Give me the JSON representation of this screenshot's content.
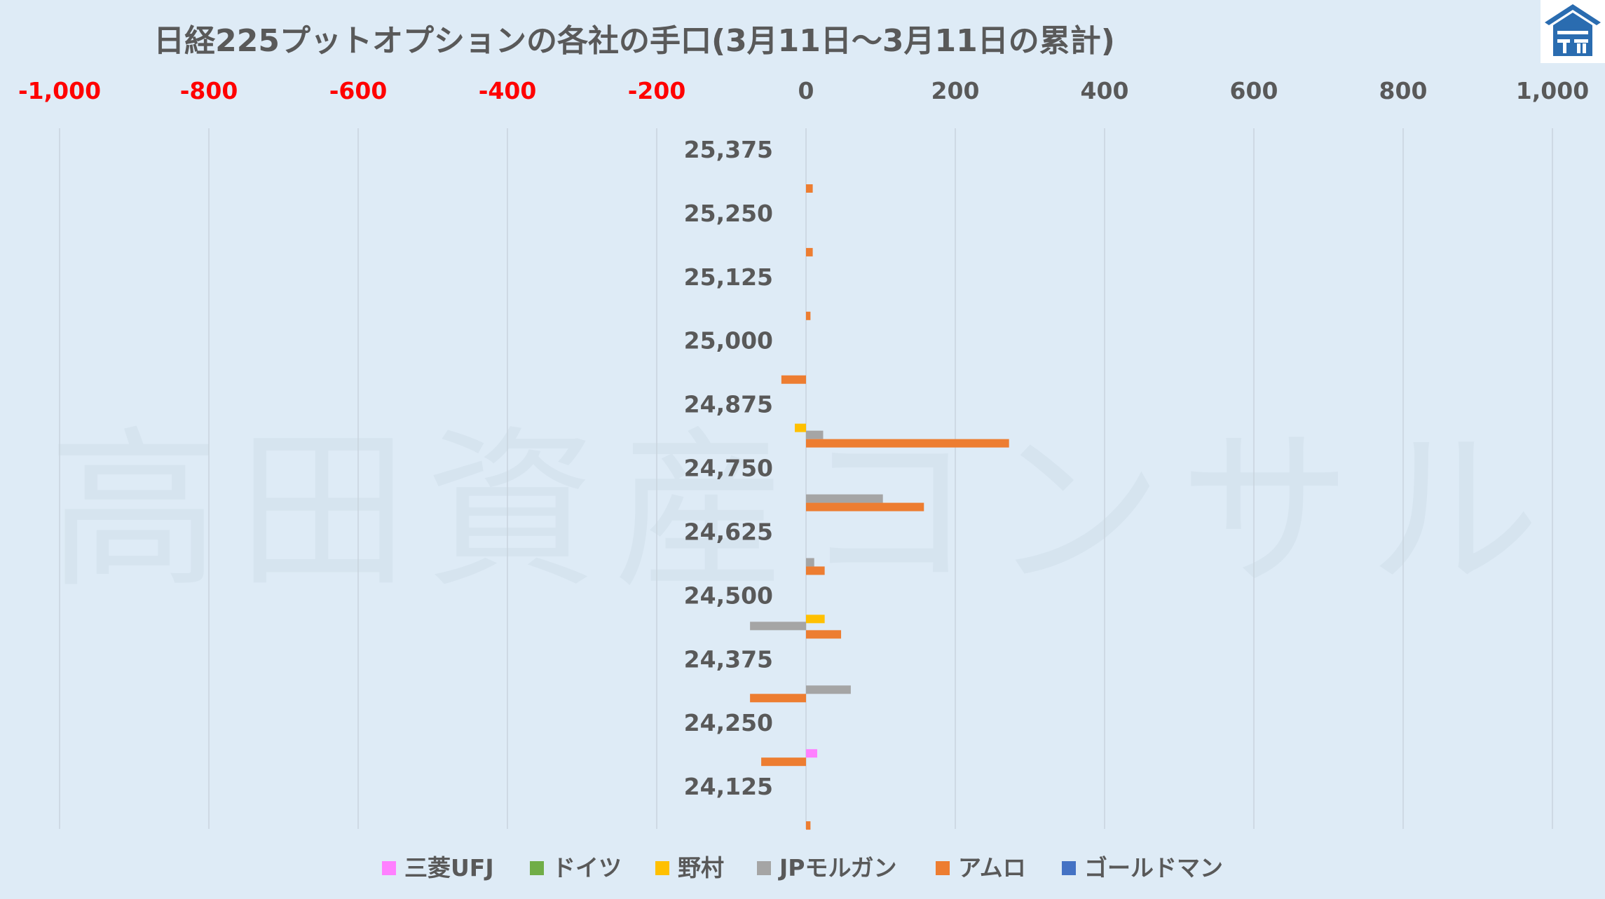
{
  "chart_data": {
    "type": "bar",
    "orientation": "horizontal",
    "title": "日経225プットオプションの各社の手口(3月11日～3月11日の累計)",
    "xlim": [
      -1000,
      1000
    ],
    "x_ticks": [
      "-1,000",
      "-800",
      "-600",
      "-400",
      "-200",
      "0",
      "200",
      "400",
      "600",
      "800",
      "1,000"
    ],
    "x_tick_values": [
      -1000,
      -800,
      -600,
      -400,
      -200,
      0,
      200,
      400,
      600,
      800,
      1000
    ],
    "negative_tick_color": "#ff0000",
    "positive_tick_color": "#595959",
    "grid": true,
    "legend_position": "bottom",
    "categories": [
      "25,375",
      "25,250",
      "25,125",
      "25,000",
      "24,875",
      "24,750",
      "24,625",
      "24,500",
      "24,375",
      "24,250",
      "24,125"
    ],
    "series": [
      {
        "name": "三菱UFJ",
        "color": "#ff80ff",
        "values": [
          0,
          0,
          0,
          0,
          0,
          0,
          0,
          0,
          0,
          15,
          0
        ]
      },
      {
        "name": "ドイツ",
        "color": "#70ad47",
        "values": [
          0,
          0,
          0,
          0,
          0,
          0,
          0,
          0,
          0,
          0,
          0
        ]
      },
      {
        "name": "野村",
        "color": "#ffc000",
        "values": [
          0,
          0,
          0,
          0,
          -15,
          0,
          0,
          25,
          0,
          0,
          0
        ]
      },
      {
        "name": "JPモルガン",
        "color": "#a5a5a5",
        "values": [
          0,
          0,
          0,
          0,
          23,
          103,
          11,
          -75,
          60,
          0,
          0
        ]
      },
      {
        "name": "アムロ",
        "color": "#ed7d31",
        "values": [
          9,
          9,
          6,
          -33,
          272,
          158,
          25,
          47,
          -75,
          -60,
          6
        ]
      },
      {
        "name": "ゴールドマン",
        "color": "#4472c4",
        "values": [
          0,
          0,
          0,
          0,
          0,
          0,
          0,
          0,
          0,
          0,
          0
        ]
      }
    ]
  },
  "watermark": "高田資産コンサル",
  "logo_icon": "house-logo-icon"
}
